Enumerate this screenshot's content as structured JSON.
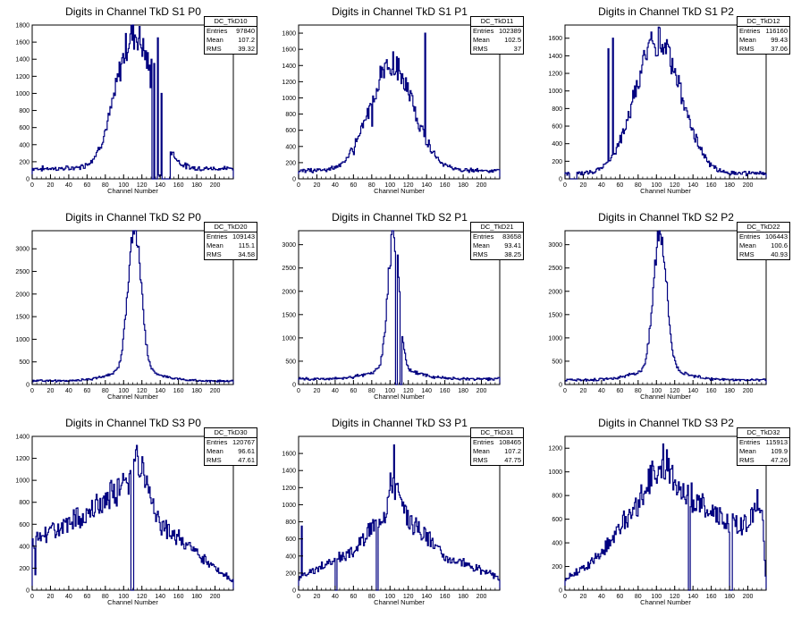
{
  "chart_data": [
    {
      "type": "histogram",
      "title": "Digits in Channel TkD S1 P0",
      "xlabel": "Channel Number",
      "ylabel": "",
      "stats": {
        "name": "DC_TkD10",
        "entries": "97840",
        "mean": "107.2",
        "rms": "39.32"
      },
      "x_range": [
        0,
        220
      ],
      "y_range": [
        0,
        1800
      ],
      "x_ticks": [
        0,
        20,
        40,
        60,
        80,
        100,
        120,
        140,
        160,
        180,
        200
      ],
      "y_ticks": [
        0,
        200,
        400,
        600,
        800,
        1000,
        1200,
        1400,
        1600,
        1800
      ],
      "shape": {
        "baseline": 120,
        "peaks": [
          {
            "center": 112,
            "width": 20,
            "amplitude": 1580
          }
        ],
        "tail_right_edge": 130,
        "spikes": [
          {
            "x": 130,
            "v": 1400
          },
          {
            "x": 133,
            "v": 1350
          },
          {
            "x": 137,
            "v": 1650
          },
          {
            "x": 141,
            "v": 1000
          }
        ],
        "gaps": [
          [
            131,
            132
          ],
          [
            134,
            136
          ],
          [
            142,
            150
          ]
        ],
        "noise": 0.12
      }
    },
    {
      "type": "histogram",
      "title": "Digits in Channel TkD S1 P1",
      "xlabel": "Channel Number",
      "ylabel": "",
      "stats": {
        "name": "DC_TkD11",
        "entries": "102389",
        "mean": "102.5",
        "rms": "37"
      },
      "x_range": [
        0,
        220
      ],
      "y_range": [
        0,
        1900
      ],
      "x_ticks": [
        0,
        20,
        40,
        60,
        80,
        100,
        120,
        140,
        160,
        180,
        200
      ],
      "y_ticks": [
        0,
        200,
        400,
        600,
        800,
        1000,
        1200,
        1400,
        1600,
        1800
      ],
      "shape": {
        "baseline": 100,
        "peaks": [
          {
            "center": 102,
            "width": 24,
            "amplitude": 1300
          }
        ],
        "spikes": [
          {
            "x": 60,
            "v": 300
          },
          {
            "x": 80,
            "v": 650
          },
          {
            "x": 100,
            "v": 1300
          },
          {
            "x": 138,
            "v": 1800
          }
        ],
        "gaps": [],
        "noise": 0.12
      }
    },
    {
      "type": "histogram",
      "title": "Digits in Channel TkD S1 P2",
      "xlabel": "Channel Number",
      "ylabel": "",
      "stats": {
        "name": "DC_TkD12",
        "entries": "116160",
        "mean": "99.43",
        "rms": "37.06"
      },
      "x_range": [
        0,
        220
      ],
      "y_range": [
        0,
        1750
      ],
      "x_ticks": [
        0,
        20,
        40,
        60,
        80,
        100,
        120,
        140,
        160,
        180,
        200
      ],
      "y_ticks": [
        0,
        200,
        400,
        600,
        800,
        1000,
        1200,
        1400,
        1600
      ],
      "shape": {
        "baseline": 60,
        "peaks": [
          {
            "center": 102,
            "width": 25,
            "amplitude": 1520
          }
        ],
        "spikes": [
          {
            "x": 47,
            "v": 1480
          },
          {
            "x": 52,
            "v": 1600
          },
          {
            "x": 100,
            "v": 1400
          }
        ],
        "gaps": [
          [
            5,
            12
          ]
        ],
        "noise": 0.12
      }
    },
    {
      "type": "histogram",
      "title": "Digits in Channel TkD S2 P0",
      "xlabel": "Channel Number",
      "ylabel": "",
      "stats": {
        "name": "DC_TkD20",
        "entries": "109143",
        "mean": "115.1",
        "rms": "34.58"
      },
      "x_range": [
        0,
        220
      ],
      "y_range": [
        0,
        3400
      ],
      "x_ticks": [
        0,
        20,
        40,
        60,
        80,
        100,
        120,
        140,
        160,
        180,
        200
      ],
      "y_ticks": [
        0,
        500,
        1000,
        1500,
        2000,
        2500,
        3000
      ],
      "shape": {
        "baseline": 80,
        "peaks": [
          {
            "center": 112,
            "width": 7,
            "amplitude": 3200
          },
          {
            "center": 112,
            "width": 25,
            "amplitude": 250
          }
        ],
        "spikes": [],
        "gaps": [],
        "noise": 0.08
      }
    },
    {
      "type": "histogram",
      "title": "Digits in Channel TkD S2 P1",
      "xlabel": "Channel Number",
      "ylabel": "",
      "stats": {
        "name": "DC_TkD21",
        "entries": "83658",
        "mean": "93.41",
        "rms": "38.25"
      },
      "x_range": [
        0,
        220
      ],
      "y_range": [
        0,
        3300
      ],
      "x_ticks": [
        0,
        20,
        40,
        60,
        80,
        100,
        120,
        140,
        160,
        180,
        200
      ],
      "y_ticks": [
        0,
        500,
        1000,
        1500,
        2000,
        2500,
        3000
      ],
      "shape": {
        "baseline": 120,
        "peaks": [
          {
            "center": 104,
            "width": 6,
            "amplitude": 2900
          },
          {
            "center": 104,
            "width": 25,
            "amplitude": 220
          }
        ],
        "spikes": [
          {
            "x": 104,
            "v": 3150
          },
          {
            "x": 109,
            "v": 2300
          }
        ],
        "gaps": [
          [
            106,
            107
          ],
          [
            111,
            112
          ]
        ],
        "noise": 0.12
      }
    },
    {
      "type": "histogram",
      "title": "Digits in Channel TkD S2 P2",
      "xlabel": "Channel Number",
      "ylabel": "",
      "stats": {
        "name": "DC_TkD22",
        "entries": "106443",
        "mean": "100.6",
        "rms": "40.93"
      },
      "x_range": [
        0,
        220
      ],
      "y_range": [
        0,
        3300
      ],
      "x_ticks": [
        0,
        20,
        40,
        60,
        80,
        100,
        120,
        140,
        160,
        180,
        200
      ],
      "y_ticks": [
        0,
        500,
        1000,
        1500,
        2000,
        2500,
        3000
      ],
      "shape": {
        "baseline": 100,
        "peaks": [
          {
            "center": 104,
            "width": 7,
            "amplitude": 3000
          },
          {
            "center": 104,
            "width": 25,
            "amplitude": 250
          }
        ],
        "spikes": [],
        "gaps": [],
        "noise": 0.1
      }
    },
    {
      "type": "histogram",
      "title": "Digits in Channel TkD S3 P0",
      "xlabel": "Channel Number",
      "ylabel": "",
      "stats": {
        "name": "DC_TkD30",
        "entries": "120767",
        "mean": "96.61",
        "rms": "47.61"
      },
      "x_range": [
        0,
        220
      ],
      "y_range": [
        0,
        1400
      ],
      "x_ticks": [
        0,
        20,
        40,
        60,
        80,
        100,
        120,
        140,
        160,
        180,
        200
      ],
      "y_ticks": [
        0,
        200,
        400,
        600,
        800,
        1000,
        1200,
        1400
      ],
      "shape": {
        "baseline": 380,
        "ramp": [
          {
            "x": 0,
            "v": 420
          },
          {
            "x": 60,
            "v": 700
          },
          {
            "x": 105,
            "v": 1000
          },
          {
            "x": 112,
            "v": 1320
          },
          {
            "x": 140,
            "v": 600
          },
          {
            "x": 200,
            "v": 200
          },
          {
            "x": 220,
            "v": 80
          }
        ],
        "peaks": [],
        "spikes": [
          {
            "x": 3,
            "v": 140
          }
        ],
        "gaps": [
          [
            108,
            110
          ]
        ],
        "noise": 0.15
      }
    },
    {
      "type": "histogram",
      "title": "Digits in Channel TkD S3 P1",
      "xlabel": "Channel Number",
      "ylabel": "",
      "stats": {
        "name": "DC_TkD31",
        "entries": "108465",
        "mean": "107.2",
        "rms": "47.75"
      },
      "x_range": [
        0,
        220
      ],
      "y_range": [
        0,
        1800
      ],
      "x_ticks": [
        0,
        20,
        40,
        60,
        80,
        100,
        120,
        140,
        160,
        180,
        200
      ],
      "y_ticks": [
        0,
        200,
        400,
        600,
        800,
        1000,
        1200,
        1400,
        1600
      ],
      "shape": {
        "baseline": 180,
        "ramp": [
          {
            "x": 0,
            "v": 150
          },
          {
            "x": 60,
            "v": 450
          },
          {
            "x": 95,
            "v": 950
          },
          {
            "x": 103,
            "v": 1350
          },
          {
            "x": 115,
            "v": 900
          },
          {
            "x": 160,
            "v": 400
          },
          {
            "x": 220,
            "v": 150
          }
        ],
        "peaks": [],
        "spikes": [
          {
            "x": 3,
            "v": 750
          },
          {
            "x": 104,
            "v": 1700
          }
        ],
        "gaps": [
          [
            40,
            41
          ],
          [
            85,
            86
          ]
        ],
        "noise": 0.15
      }
    },
    {
      "type": "histogram",
      "title": "Digits in Channel TkD S3 P2",
      "xlabel": "Channel Number",
      "ylabel": "",
      "stats": {
        "name": "DC_TkD32",
        "entries": "115913",
        "mean": "109.9",
        "rms": "47.26"
      },
      "x_range": [
        0,
        220
      ],
      "y_range": [
        0,
        1300
      ],
      "x_ticks": [
        0,
        20,
        40,
        60,
        80,
        100,
        120,
        140,
        160,
        180,
        200
      ],
      "y_ticks": [
        0,
        200,
        400,
        600,
        800,
        1000,
        1200
      ],
      "shape": {
        "baseline": 120,
        "ramp": [
          {
            "x": 0,
            "v": 80
          },
          {
            "x": 40,
            "v": 300
          },
          {
            "x": 80,
            "v": 750
          },
          {
            "x": 105,
            "v": 1100
          },
          {
            "x": 130,
            "v": 850
          },
          {
            "x": 170,
            "v": 600
          },
          {
            "x": 200,
            "v": 550
          },
          {
            "x": 215,
            "v": 750
          },
          {
            "x": 220,
            "v": 50
          }
        ],
        "peaks": [],
        "spikes": [
          {
            "x": 210,
            "v": 850
          }
        ],
        "gaps": [
          [
            135,
            136
          ],
          [
            180,
            182
          ]
        ],
        "noise": 0.15
      }
    }
  ]
}
